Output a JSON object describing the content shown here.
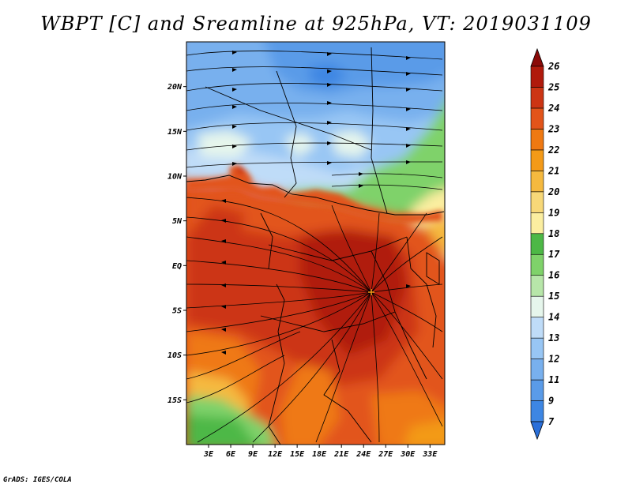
{
  "title": "WBPT [C] and Sreamline at 925hPa, VT: 2019031109",
  "credit": "GrADS: IGES/COLA",
  "map": {
    "type": "heatmap",
    "variable": "WBPT",
    "level": "925hPa",
    "valid_time": "2019031109",
    "lon_range": [
      0,
      35
    ],
    "lat_range": [
      -20,
      25
    ],
    "x_ticks": [
      {
        "value": 3,
        "label": "3E"
      },
      {
        "value": 6,
        "label": "6E"
      },
      {
        "value": 9,
        "label": "9E"
      },
      {
        "value": 12,
        "label": "12E"
      },
      {
        "value": 15,
        "label": "15E"
      },
      {
        "value": 18,
        "label": "18E"
      },
      {
        "value": 21,
        "label": "21E"
      },
      {
        "value": 24,
        "label": "24E"
      },
      {
        "value": 27,
        "label": "27E"
      },
      {
        "value": 30,
        "label": "30E"
      },
      {
        "value": 33,
        "label": "33E"
      }
    ],
    "y_ticks": [
      {
        "value": 20,
        "label": "20N"
      },
      {
        "value": 15,
        "label": "15N"
      },
      {
        "value": 10,
        "label": "10N"
      },
      {
        "value": 5,
        "label": "5N"
      },
      {
        "value": 0,
        "label": "EQ"
      },
      {
        "value": -5,
        "label": "5S"
      },
      {
        "value": -10,
        "label": "10S"
      },
      {
        "value": -15,
        "label": "15S"
      }
    ]
  },
  "colorbar": {
    "levels": [
      "7",
      "9",
      "11",
      "12",
      "13",
      "14",
      "15",
      "16",
      "17",
      "18",
      "19",
      "20",
      "21",
      "22",
      "23",
      "24",
      "25",
      "26"
    ],
    "colors": [
      "#2a6fd9",
      "#3d86e3",
      "#5a9be8",
      "#78b0ee",
      "#98c6f4",
      "#bfdcf8",
      "#e6f6ec",
      "#b7e6a9",
      "#7fd26a",
      "#4db846",
      "#fbeea0",
      "#f7d878",
      "#f5b93f",
      "#f39a18",
      "#ef7912",
      "#e2541a",
      "#cc3514",
      "#b01a0c",
      "#8b0a08"
    ]
  }
}
